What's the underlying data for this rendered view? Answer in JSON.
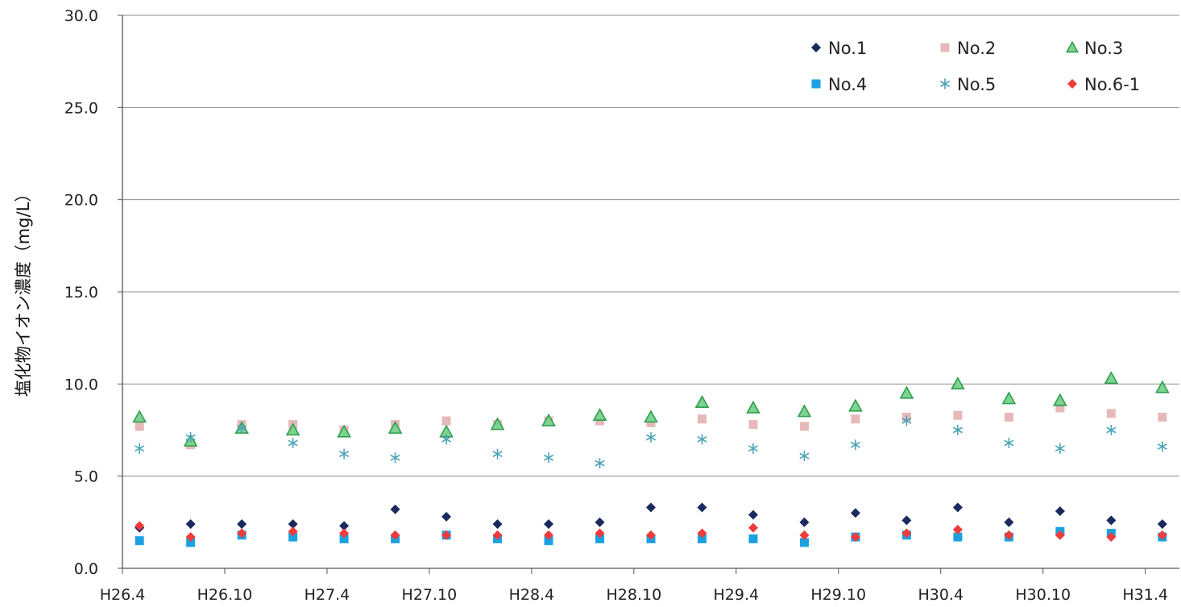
{
  "chart_data": {
    "type": "scatter",
    "title": "",
    "xlabel": "",
    "ylabel": "塩化物イオン濃度（mg/L）",
    "ylim": [
      0,
      30
    ],
    "yticks": [
      "0.0",
      "5.0",
      "10.0",
      "15.0",
      "20.0",
      "25.0",
      "30.0"
    ],
    "xlim": [
      "H26.4",
      "H31.6"
    ],
    "xticks": [
      "H26.4",
      "H26.10",
      "H27.4",
      "H27.10",
      "H28.4",
      "H28.10",
      "H29.4",
      "H29.10",
      "H30.4",
      "H30.10",
      "H31.4"
    ],
    "x": [
      "H26.5",
      "H26.8",
      "H26.11",
      "H27.2",
      "H27.5",
      "H27.8",
      "H27.11",
      "H28.2",
      "H28.5",
      "H28.8",
      "H28.11",
      "H29.2",
      "H29.5",
      "H29.8",
      "H29.11",
      "H30.2",
      "H30.5",
      "H30.8",
      "H30.11",
      "H31.2",
      "H31.5"
    ],
    "grid": "horizontal",
    "legend_position": "top-right",
    "series": [
      {
        "name": "No.1",
        "color": "#1a2a5e",
        "marker": "diamond",
        "values": [
          2.2,
          2.4,
          2.4,
          2.4,
          2.3,
          3.2,
          2.8,
          2.4,
          2.4,
          2.5,
          3.3,
          3.3,
          2.9,
          2.5,
          3.0,
          2.6,
          3.3,
          2.5,
          3.1,
          2.6,
          2.4
        ]
      },
      {
        "name": "No.2",
        "color": "#e6b9b8",
        "marker": "square",
        "values": [
          7.7,
          6.7,
          7.8,
          7.8,
          7.5,
          7.8,
          8.0,
          7.8,
          8.0,
          8.0,
          7.9,
          8.1,
          7.8,
          7.7,
          8.1,
          8.2,
          8.3,
          8.2,
          8.7,
          8.4,
          8.2
        ]
      },
      {
        "name": "No.3",
        "color": "#5cc47a",
        "marker": "triangle",
        "values": [
          8.2,
          6.9,
          7.6,
          7.5,
          7.4,
          7.6,
          7.4,
          7.8,
          8.0,
          8.3,
          8.2,
          9.0,
          8.7,
          8.5,
          8.8,
          9.5,
          10.0,
          9.2,
          9.1,
          10.3,
          9.8
        ]
      },
      {
        "name": "No.4",
        "color": "#1ba1e2",
        "marker": "square",
        "values": [
          1.5,
          1.4,
          1.8,
          1.7,
          1.6,
          1.6,
          1.8,
          1.6,
          1.5,
          1.6,
          1.6,
          1.6,
          1.6,
          1.4,
          1.7,
          1.8,
          1.7,
          1.7,
          2.0,
          1.9,
          1.7
        ]
      },
      {
        "name": "No.5",
        "color": "#4ba3b8",
        "marker": "asterisk",
        "values": [
          6.5,
          7.1,
          7.6,
          6.8,
          6.2,
          6.0,
          7.0,
          6.2,
          6.0,
          5.7,
          7.1,
          7.0,
          6.5,
          6.1,
          6.7,
          8.0,
          7.5,
          6.8,
          6.5,
          7.5,
          6.6
        ]
      },
      {
        "name": "No.6-1",
        "color": "#ef3b3b",
        "marker": "diamond",
        "values": [
          2.3,
          1.7,
          1.9,
          2.0,
          1.9,
          1.8,
          1.8,
          1.8,
          1.8,
          1.9,
          1.8,
          1.9,
          2.2,
          1.8,
          1.7,
          1.9,
          2.1,
          1.8,
          1.8,
          1.7,
          1.8
        ]
      }
    ]
  }
}
